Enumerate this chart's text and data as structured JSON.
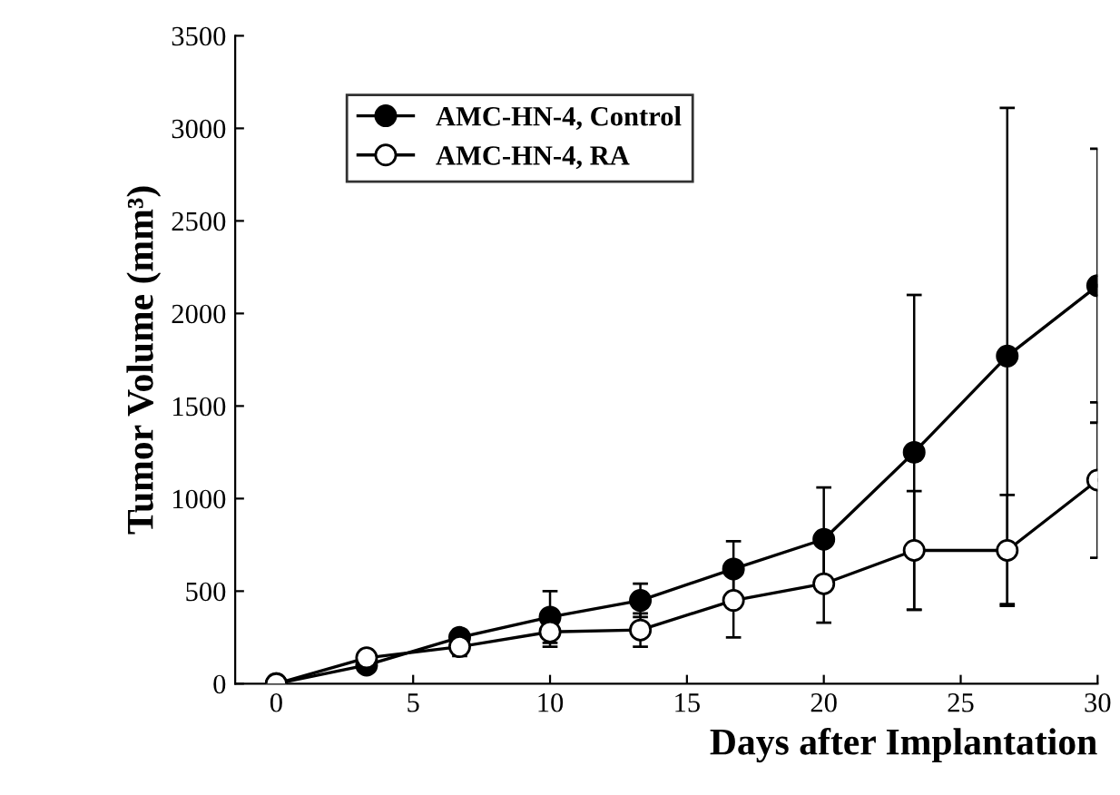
{
  "chart_data": {
    "type": "line",
    "xlabel": "Days after Implantation",
    "ylabel": "Tumor Volume (mm³)",
    "xlim": [
      -1.5,
      30
    ],
    "xticks": [
      0,
      5,
      10,
      15,
      20,
      25,
      30
    ],
    "ylim": [
      0,
      3500
    ],
    "yticks": [
      0,
      500,
      1000,
      1500,
      2000,
      2500,
      3000,
      3500
    ],
    "grid": false,
    "legend": "top",
    "marker": "circle",
    "line_style": "solid",
    "series": [
      {
        "name": "AMC-HN-4, Control",
        "color": "#000000",
        "x": [
          0,
          3.3,
          6.7,
          10,
          13.3,
          16.7,
          20,
          23.3,
          26.7,
          30
        ],
        "values": [
          0,
          100,
          250,
          360,
          450,
          620,
          780,
          1250,
          1770,
          2150
        ],
        "errors": [
          null,
          null,
          40,
          140,
          90,
          150,
          280,
          850,
          1340,
          740
        ]
      },
      {
        "name": "AMC-HN-4, RA",
        "color": "#ffffff",
        "x": [
          0,
          3.3,
          6.7,
          10,
          13.3,
          16.7,
          20,
          23.3,
          26.7,
          30
        ],
        "values": [
          0,
          140,
          200,
          280,
          290,
          450,
          540,
          720,
          720,
          1100
        ],
        "errors": [
          null,
          null,
          50,
          80,
          90,
          200,
          210,
          320,
          300,
          420
        ]
      }
    ]
  }
}
